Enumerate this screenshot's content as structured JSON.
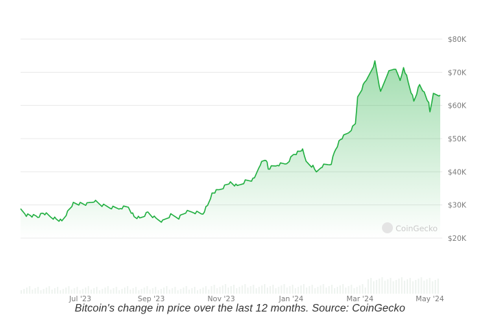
{
  "caption": "Bitcoin's change in price over the last 12 months. Source: CoinGecko",
  "watermark": "CoinGecko",
  "colors": {
    "line": "#1fae3f",
    "fill": "#1fae3f",
    "grid": "#e8e8e8",
    "tick": "#7a7a7a"
  },
  "chart_data": {
    "type": "area",
    "title": "",
    "xlabel": "",
    "ylabel": "",
    "x_range": [
      "2023-05-10",
      "2024-05-10"
    ],
    "ylim": [
      20000,
      80000
    ],
    "y_ticks": [
      {
        "value": 80000,
        "label": "$80K"
      },
      {
        "value": 70000,
        "label": "$70K"
      },
      {
        "value": 60000,
        "label": "$60K"
      },
      {
        "value": 50000,
        "label": "$50K"
      },
      {
        "value": 40000,
        "label": "$40K"
      },
      {
        "value": 30000,
        "label": "$30K"
      },
      {
        "value": 20000,
        "label": "$20K"
      }
    ],
    "x_ticks": [
      {
        "date": "2023-07-01",
        "label": "Jul '23"
      },
      {
        "date": "2023-09-01",
        "label": "Sep '23"
      },
      {
        "date": "2023-11-01",
        "label": "Nov '23"
      },
      {
        "date": "2024-01-01",
        "label": "Jan '24"
      },
      {
        "date": "2024-03-01",
        "label": "Mar '24"
      },
      {
        "date": "2024-05-01",
        "label": "May '24"
      }
    ],
    "grid": true,
    "legend": "none",
    "series": [
      {
        "points": [
          [
            "2023-05-10",
            28400
          ],
          [
            "2023-05-15",
            27000
          ],
          [
            "2023-05-20",
            26700
          ],
          [
            "2023-05-25",
            26500
          ],
          [
            "2023-05-30",
            27600
          ],
          [
            "2023-06-05",
            26500
          ],
          [
            "2023-06-10",
            25800
          ],
          [
            "2023-06-15",
            25100
          ],
          [
            "2023-06-20",
            28000
          ],
          [
            "2023-06-25",
            30500
          ],
          [
            "2023-07-01",
            30400
          ],
          [
            "2023-07-07",
            30200
          ],
          [
            "2023-07-13",
            31300
          ],
          [
            "2023-07-20",
            29900
          ],
          [
            "2023-07-27",
            29300
          ],
          [
            "2023-08-05",
            29100
          ],
          [
            "2023-08-12",
            29400
          ],
          [
            "2023-08-17",
            26500
          ],
          [
            "2023-08-22",
            26000
          ],
          [
            "2023-08-29",
            27700
          ],
          [
            "2023-09-05",
            25800
          ],
          [
            "2023-09-11",
            25100
          ],
          [
            "2023-09-18",
            26900
          ],
          [
            "2023-09-25",
            26200
          ],
          [
            "2023-10-01",
            27900
          ],
          [
            "2023-10-08",
            27900
          ],
          [
            "2023-10-16",
            27400
          ],
          [
            "2023-10-20",
            29900
          ],
          [
            "2023-10-24",
            33600
          ],
          [
            "2023-10-30",
            34500
          ],
          [
            "2023-11-09",
            36800
          ],
          [
            "2023-11-15",
            35600
          ],
          [
            "2023-11-22",
            37200
          ],
          [
            "2023-11-30",
            37700
          ],
          [
            "2023-12-05",
            42400
          ],
          [
            "2023-12-10",
            43800
          ],
          [
            "2023-12-12",
            41100
          ],
          [
            "2023-12-20",
            42100
          ],
          [
            "2023-12-28",
            42500
          ],
          [
            "2024-01-03",
            45200
          ],
          [
            "2024-01-09",
            46100
          ],
          [
            "2024-01-11",
            46700
          ],
          [
            "2024-01-14",
            42900
          ],
          [
            "2024-01-20",
            41600
          ],
          [
            "2024-01-23",
            39500
          ],
          [
            "2024-01-28",
            41800
          ],
          [
            "2024-02-05",
            42600
          ],
          [
            "2024-02-09",
            47100
          ],
          [
            "2024-02-13",
            49900
          ],
          [
            "2024-02-20",
            51800
          ],
          [
            "2024-02-26",
            54500
          ],
          [
            "2024-02-28",
            62500
          ],
          [
            "2024-03-05",
            66800
          ],
          [
            "2024-03-08",
            68300
          ],
          [
            "2024-03-14",
            73100
          ],
          [
            "2024-03-19",
            63800
          ],
          [
            "2024-03-25",
            69800
          ],
          [
            "2024-03-31",
            71300
          ],
          [
            "2024-04-05",
            67800
          ],
          [
            "2024-04-08",
            71600
          ],
          [
            "2024-04-12",
            67200
          ],
          [
            "2024-04-17",
            61300
          ],
          [
            "2024-04-22",
            66200
          ],
          [
            "2024-04-26",
            63900
          ],
          [
            "2024-04-30",
            60600
          ],
          [
            "2024-05-01",
            57700
          ],
          [
            "2024-05-04",
            63200
          ],
          [
            "2024-05-10",
            63100
          ]
        ]
      }
    ]
  }
}
